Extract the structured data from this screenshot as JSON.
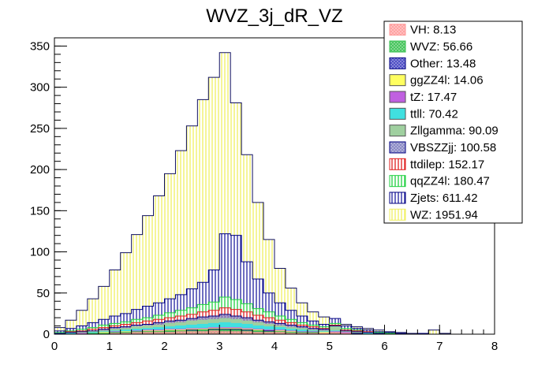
{
  "chart_data": {
    "type": "bar",
    "subtype": "stacked-histogram",
    "title": "WVZ_3j_dR_VZ",
    "xlabel": "",
    "ylabel": "",
    "xlim": [
      0,
      8
    ],
    "ylim": [
      0,
      360
    ],
    "xticks": [
      "0",
      "1",
      "2",
      "3",
      "4",
      "5",
      "6",
      "7",
      "8"
    ],
    "yticks": [
      "0",
      "50",
      "100",
      "150",
      "200",
      "250",
      "300",
      "350"
    ],
    "legend_position": "top-right",
    "bin_edges": [
      0,
      0.2,
      0.4,
      0.6,
      0.8,
      1.0,
      1.2,
      1.4,
      1.6,
      1.8,
      2.0,
      2.2,
      2.4,
      2.6,
      2.8,
      3.0,
      3.2,
      3.4,
      3.6,
      3.8,
      4.0,
      4.2,
      4.4,
      4.6,
      4.8,
      5.0,
      5.2,
      5.4,
      5.6,
      5.8,
      6.0,
      6.2,
      6.4,
      6.6,
      6.8,
      7.0,
      7.2,
      7.4,
      7.6,
      7.8,
      8.0
    ],
    "series": [
      {
        "name": "VH: 8.13",
        "color": "#ff9a9a",
        "pattern": "cross",
        "values": [
          0,
          0,
          0,
          0,
          0,
          0,
          0,
          0,
          0,
          0,
          0,
          0,
          0,
          0,
          0,
          0,
          0,
          0,
          0,
          0,
          0,
          0,
          0,
          0,
          0,
          0,
          0,
          0,
          0,
          0,
          0,
          0,
          0,
          0,
          0,
          0,
          0,
          0,
          0,
          0
        ]
      },
      {
        "name": "WVZ: 56.66",
        "color": "#38c050",
        "pattern": "cross",
        "values": [
          0,
          0,
          0,
          0,
          0,
          0,
          0,
          0,
          0,
          0,
          0,
          0,
          0,
          0,
          0,
          0,
          0,
          0,
          0,
          0,
          0,
          0,
          0,
          0,
          0,
          0,
          0,
          0,
          0,
          0,
          0,
          0,
          0,
          0,
          0,
          0,
          0,
          0,
          0,
          0
        ]
      },
      {
        "name": "Other: 13.48",
        "color": "#4040c0",
        "pattern": "cross",
        "values": [
          0,
          0,
          0,
          0,
          0,
          0,
          0,
          0,
          0,
          0,
          0,
          0,
          0,
          0,
          0,
          0,
          0,
          0,
          0,
          0,
          0,
          0,
          0,
          0,
          0,
          0,
          0,
          0,
          0,
          0,
          0,
          0,
          0,
          0,
          0,
          0,
          0,
          0,
          0,
          0
        ]
      },
      {
        "name": "ggZZ4l: 14.06",
        "color": "#ffff60",
        "pattern": "solid",
        "values": [
          0,
          0,
          0,
          0,
          0,
          0,
          0,
          0,
          0,
          0,
          0,
          0,
          0,
          0,
          0,
          0,
          0,
          0,
          0,
          0,
          0,
          0,
          0,
          0,
          0,
          0,
          0,
          0,
          0,
          0,
          0,
          0,
          0,
          0,
          0,
          0,
          0,
          0,
          0,
          0
        ]
      },
      {
        "name": "tZ: 17.47",
        "color": "#c060e0",
        "pattern": "solid",
        "values": [
          0,
          0,
          0,
          0,
          0,
          0,
          0,
          0,
          0,
          0,
          0,
          0,
          0,
          0,
          0,
          0,
          0,
          0,
          0,
          0,
          0,
          0,
          0,
          0,
          0,
          0,
          0,
          0,
          0,
          0,
          0,
          0,
          0,
          0,
          0,
          0,
          0,
          0,
          0,
          0
        ]
      },
      {
        "name": "ttll: 70.42",
        "color": "#40e0e0",
        "pattern": "solid",
        "values": [
          0,
          0,
          0,
          0,
          0,
          0,
          0,
          0,
          0,
          0,
          0,
          0,
          0,
          0,
          0,
          0,
          0,
          0,
          0,
          0,
          0,
          0,
          0,
          0,
          0,
          0,
          0,
          0,
          0,
          0,
          0,
          0,
          0,
          0,
          0,
          0,
          0,
          0,
          0,
          0
        ]
      },
      {
        "name": "Zllgamma: 90.09",
        "color": "#a0d0a0",
        "pattern": "solid",
        "values": [
          0,
          0,
          0,
          0,
          0,
          0,
          0,
          0,
          0,
          0,
          0,
          0,
          0,
          0,
          0,
          0,
          0,
          0,
          0,
          0,
          0,
          0,
          0,
          0,
          0,
          0,
          0,
          0,
          0,
          0,
          0,
          0,
          0,
          0,
          0,
          0,
          0,
          0,
          0,
          0
        ]
      },
      {
        "name": "VBSZZjj: 100.58",
        "color": "#8080c0",
        "pattern": "cross",
        "values": [
          0,
          0,
          0,
          0,
          0,
          0,
          0,
          0,
          0,
          0,
          0,
          0,
          0,
          0,
          0,
          0,
          0,
          0,
          0,
          0,
          0,
          0,
          0,
          0,
          0,
          0,
          0,
          0,
          0,
          0,
          0,
          0,
          0,
          0,
          0,
          0,
          0,
          0,
          0,
          0
        ]
      },
      {
        "name": "ttdilep: 152.17",
        "color": "#e02020",
        "pattern": "vlines",
        "values": [
          0,
          0,
          0,
          0,
          0,
          0,
          0,
          0,
          0,
          0,
          0,
          0,
          0,
          0,
          0,
          0,
          0,
          0,
          0,
          0,
          0,
          0,
          0,
          0,
          0,
          0,
          0,
          0,
          0,
          0,
          0,
          0,
          0,
          0,
          0,
          0,
          0,
          0,
          0,
          0
        ]
      },
      {
        "name": "qqZZ4l: 180.47",
        "color": "#20d040",
        "pattern": "vlines",
        "values": [
          0,
          0,
          0,
          0,
          0,
          0,
          0,
          0,
          0,
          0,
          0,
          0,
          0,
          0,
          0,
          0,
          0,
          0,
          0,
          0,
          0,
          0,
          0,
          0,
          0,
          0,
          0,
          0,
          0,
          0,
          0,
          0,
          0,
          0,
          0,
          0,
          0,
          0,
          0,
          0
        ]
      },
      {
        "name": "Zjets: 611.42",
        "color": "#2020a0",
        "pattern": "vlines",
        "values": [
          0,
          0,
          0,
          0,
          0,
          0,
          0,
          0,
          0,
          0,
          0,
          0,
          0,
          0,
          0,
          0,
          0,
          0,
          0,
          0,
          0,
          0,
          0,
          0,
          0,
          0,
          0,
          0,
          0,
          0,
          0,
          0,
          0,
          0,
          0,
          0,
          0,
          0,
          0,
          0
        ]
      },
      {
        "name": "WZ: 1951.94",
        "color": "#f0f060",
        "pattern": "vlines",
        "values": [
          0,
          0,
          0,
          0,
          0,
          0,
          0,
          0,
          0,
          0,
          0,
          0,
          0,
          0,
          0,
          0,
          0,
          0,
          0,
          0,
          0,
          0,
          0,
          0,
          0,
          0,
          0,
          0,
          0,
          0,
          0,
          0,
          0,
          0,
          0,
          0,
          0,
          0,
          0,
          0
        ]
      }
    ],
    "stacked_totals": {
      "VH": [
        0,
        0,
        0,
        0,
        0,
        1,
        1,
        2,
        2,
        2,
        2,
        3,
        3,
        3,
        4,
        3,
        3,
        3,
        2,
        2,
        2,
        1,
        1,
        1,
        1,
        2,
        1,
        0,
        0,
        0,
        0,
        0,
        0,
        0,
        0,
        0,
        0,
        0,
        0,
        0
      ],
      "WVZ": [
        0,
        0,
        0,
        1,
        1,
        2,
        2,
        3,
        3,
        3,
        4,
        4,
        4,
        5,
        5,
        5,
        5,
        4,
        4,
        3,
        3,
        2,
        2,
        2,
        1,
        1,
        1,
        0,
        0,
        0,
        0,
        0,
        0,
        0,
        0,
        0,
        0,
        0,
        0,
        0
      ],
      "Other": [
        0,
        0,
        0,
        1,
        1,
        2,
        2,
        3,
        3,
        3,
        4,
        4,
        5,
        5,
        6,
        6,
        6,
        5,
        4,
        4,
        3,
        2,
        2,
        2,
        1,
        2,
        1,
        1,
        0,
        0,
        0,
        0,
        0,
        0,
        0,
        0,
        0,
        0,
        0,
        0
      ],
      "ggZZ4l": [
        0,
        0,
        0,
        1,
        2,
        2,
        3,
        3,
        4,
        4,
        5,
        5,
        6,
        6,
        7,
        7,
        7,
        6,
        5,
        4,
        4,
        3,
        2,
        2,
        2,
        2,
        1,
        1,
        0,
        0,
        0,
        0,
        0,
        0,
        0,
        0,
        0,
        0,
        0,
        0
      ],
      "tZ": [
        0,
        0,
        1,
        1,
        2,
        3,
        3,
        4,
        5,
        5,
        6,
        6,
        7,
        7,
        8,
        8,
        8,
        7,
        6,
        5,
        5,
        4,
        3,
        3,
        2,
        3,
        2,
        1,
        0,
        0,
        0,
        0,
        0,
        0,
        0,
        0,
        0,
        0,
        0,
        0
      ],
      "ttll": [
        0,
        1,
        1,
        2,
        3,
        4,
        5,
        6,
        7,
        8,
        9,
        10,
        11,
        12,
        13,
        14,
        13,
        12,
        10,
        9,
        8,
        6,
        5,
        4,
        3,
        4,
        2,
        1,
        1,
        0,
        0,
        0,
        0,
        0,
        0,
        0,
        0,
        0,
        0,
        0
      ],
      "Zllgamma": [
        0,
        1,
        2,
        3,
        4,
        6,
        7,
        9,
        10,
        11,
        13,
        14,
        16,
        17,
        18,
        19,
        18,
        16,
        14,
        12,
        10,
        8,
        7,
        5,
        4,
        9,
        3,
        2,
        1,
        0,
        0,
        0,
        0,
        0,
        0,
        0,
        0,
        0,
        0,
        0
      ],
      "VBSZZjj": [
        1,
        2,
        3,
        4,
        6,
        8,
        9,
        11,
        12,
        14,
        16,
        17,
        19,
        21,
        22,
        24,
        22,
        20,
        17,
        15,
        13,
        11,
        9,
        7,
        6,
        10,
        4,
        3,
        2,
        1,
        0,
        0,
        0,
        0,
        0,
        0,
        0,
        0,
        0,
        0
      ],
      "ttdilep": [
        1,
        3,
        4,
        6,
        8,
        10,
        12,
        14,
        16,
        18,
        20,
        22,
        24,
        27,
        29,
        32,
        30,
        27,
        23,
        20,
        17,
        14,
        11,
        9,
        7,
        11,
        5,
        4,
        3,
        1,
        0,
        0,
        0,
        0,
        0,
        0,
        0,
        0,
        0,
        0
      ],
      "qqZZ4l": [
        2,
        4,
        6,
        8,
        11,
        13,
        15,
        18,
        20,
        23,
        26,
        29,
        32,
        36,
        39,
        45,
        42,
        37,
        31,
        27,
        22,
        18,
        14,
        11,
        9,
        13,
        7,
        5,
        3,
        2,
        1,
        0,
        0,
        0,
        0,
        0,
        0,
        0,
        0,
        0
      ],
      "Zjets": [
        4,
        7,
        10,
        14,
        18,
        22,
        25,
        30,
        34,
        38,
        43,
        48,
        55,
        63,
        78,
        122,
        120,
        88,
        67,
        50,
        38,
        29,
        22,
        16,
        12,
        19,
        10,
        7,
        5,
        3,
        2,
        1,
        0,
        1,
        0,
        0,
        0,
        0,
        0,
        0
      ],
      "WZ": [
        8,
        17,
        29,
        43,
        58,
        78,
        99,
        121,
        144,
        168,
        195,
        223,
        253,
        285,
        312,
        342,
        281,
        218,
        160,
        115,
        80,
        56,
        38,
        27,
        21,
        17,
        12,
        9,
        7,
        5,
        3,
        2,
        1,
        1,
        5,
        1,
        0,
        0,
        0,
        0
      ]
    }
  }
}
